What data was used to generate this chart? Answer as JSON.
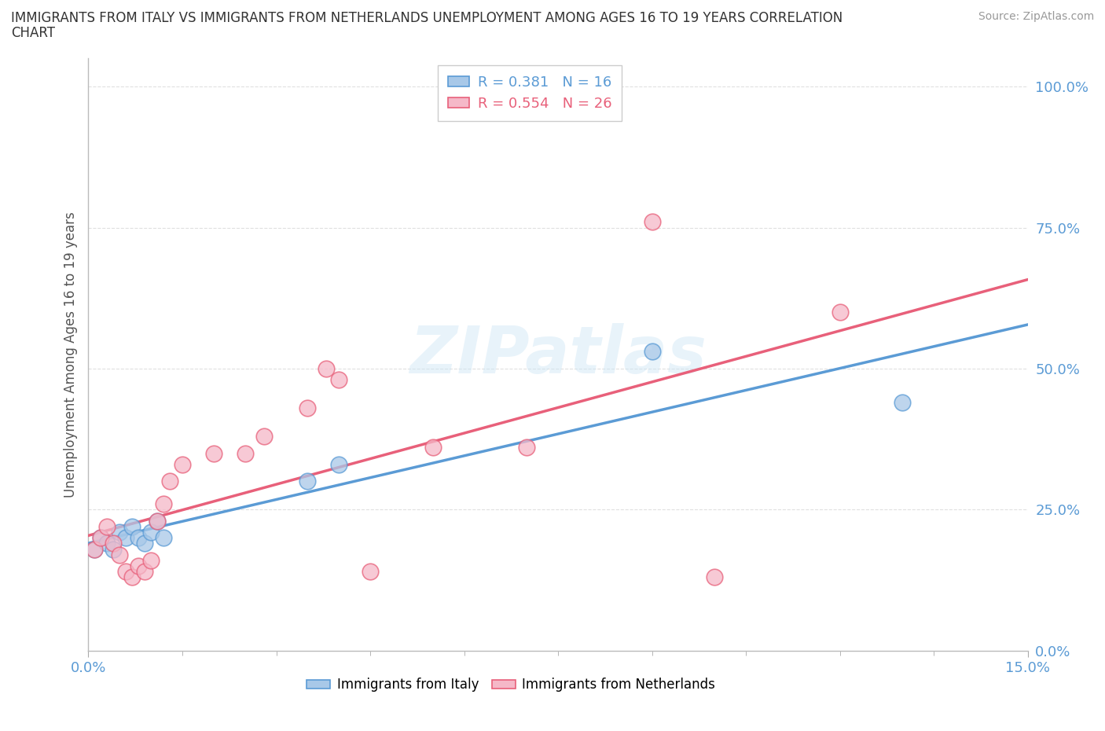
{
  "title_line1": "IMMIGRANTS FROM ITALY VS IMMIGRANTS FROM NETHERLANDS UNEMPLOYMENT AMONG AGES 16 TO 19 YEARS CORRELATION",
  "title_line2": "CHART",
  "source": "Source: ZipAtlas.com",
  "ylabel": "Unemployment Among Ages 16 to 19 years",
  "xlim": [
    0.0,
    0.15
  ],
  "ylim": [
    0.0,
    1.05
  ],
  "yticks": [
    0.0,
    0.25,
    0.5,
    0.75,
    1.0
  ],
  "ytick_labels": [
    "0.0%",
    "25.0%",
    "50.0%",
    "75.0%",
    "100.0%"
  ],
  "italy_x": [
    0.001,
    0.002,
    0.003,
    0.004,
    0.005,
    0.006,
    0.007,
    0.008,
    0.009,
    0.01,
    0.011,
    0.012,
    0.035,
    0.04,
    0.09,
    0.13
  ],
  "italy_y": [
    0.18,
    0.2,
    0.19,
    0.18,
    0.21,
    0.2,
    0.22,
    0.2,
    0.19,
    0.21,
    0.23,
    0.2,
    0.3,
    0.33,
    0.53,
    0.44
  ],
  "netherlands_x": [
    0.001,
    0.002,
    0.003,
    0.004,
    0.005,
    0.006,
    0.007,
    0.008,
    0.009,
    0.01,
    0.011,
    0.012,
    0.013,
    0.015,
    0.02,
    0.025,
    0.028,
    0.035,
    0.038,
    0.04,
    0.045,
    0.055,
    0.07,
    0.09,
    0.1,
    0.12
  ],
  "netherlands_y": [
    0.18,
    0.2,
    0.22,
    0.19,
    0.17,
    0.14,
    0.13,
    0.15,
    0.14,
    0.16,
    0.23,
    0.26,
    0.3,
    0.33,
    0.35,
    0.35,
    0.38,
    0.43,
    0.5,
    0.48,
    0.14,
    0.36,
    0.36,
    0.76,
    0.13,
    0.6
  ],
  "italy_color": "#a8c8e8",
  "netherlands_color": "#f5b8c8",
  "italy_line_color": "#5b9bd5",
  "netherlands_line_color": "#e8607a",
  "R_italy": 0.381,
  "N_italy": 16,
  "R_netherlands": 0.554,
  "N_netherlands": 26,
  "watermark": "ZIPatlas",
  "background_color": "#ffffff",
  "grid_color": "#e0e0e0"
}
